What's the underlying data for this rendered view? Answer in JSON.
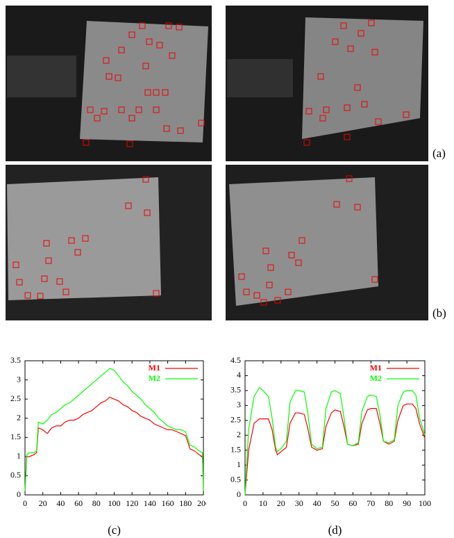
{
  "images": [
    {
      "label": "(a)"
    },
    {
      "label": "(b)"
    }
  ],
  "chart_data": [
    {
      "type": "line",
      "label": "(c)",
      "x": [
        0,
        2,
        5,
        10,
        13,
        15,
        20,
        25,
        30,
        35,
        40,
        45,
        50,
        55,
        60,
        65,
        70,
        75,
        80,
        85,
        90,
        95,
        100,
        105,
        110,
        115,
        120,
        125,
        130,
        135,
        140,
        145,
        150,
        155,
        160,
        165,
        170,
        175,
        180,
        185,
        190,
        195,
        199,
        200
      ],
      "series": [
        {
          "name": "M1",
          "color": "#ff0000",
          "values": [
            0.1,
            1.0,
            1.0,
            1.05,
            1.1,
            1.75,
            1.7,
            1.6,
            1.75,
            1.8,
            1.8,
            1.9,
            1.95,
            1.95,
            2.0,
            2.1,
            2.15,
            2.2,
            2.3,
            2.4,
            2.45,
            2.55,
            2.5,
            2.45,
            2.35,
            2.3,
            2.2,
            2.15,
            2.05,
            2.0,
            1.95,
            1.85,
            1.8,
            1.75,
            1.7,
            1.7,
            1.65,
            1.6,
            1.55,
            1.2,
            1.15,
            1.05,
            1.0,
            0.1
          ]
        },
        {
          "name": "M2",
          "color": "#00ff00",
          "values": [
            0.1,
            1.05,
            1.1,
            1.1,
            1.15,
            1.9,
            1.85,
            1.95,
            2.1,
            2.15,
            2.25,
            2.35,
            2.4,
            2.5,
            2.6,
            2.7,
            2.8,
            2.9,
            3.0,
            3.1,
            3.2,
            3.3,
            3.25,
            3.1,
            2.95,
            2.85,
            2.7,
            2.6,
            2.5,
            2.35,
            2.25,
            2.15,
            2.0,
            1.9,
            1.8,
            1.75,
            1.7,
            1.7,
            1.65,
            1.3,
            1.25,
            1.15,
            1.1,
            0.1
          ]
        }
      ],
      "xlim": [
        0,
        200
      ],
      "xticks": [
        0,
        20,
        40,
        60,
        80,
        100,
        120,
        140,
        160,
        180,
        200
      ],
      "ylim": [
        0,
        3.5
      ],
      "yticks": [
        0,
        0.5,
        1,
        1.5,
        2,
        2.5,
        3,
        3.5
      ],
      "legend": "upper right"
    },
    {
      "type": "line",
      "label": "(d)",
      "x": [
        0,
        2,
        5,
        8,
        10,
        13,
        15,
        17,
        18,
        20,
        23,
        25,
        28,
        30,
        33,
        35,
        37,
        40,
        43,
        45,
        48,
        50,
        53,
        55,
        57,
        60,
        63,
        65,
        68,
        70,
        73,
        75,
        77,
        80,
        83,
        85,
        88,
        90,
        93,
        95,
        97,
        100
      ],
      "series": [
        {
          "name": "M1",
          "color": "#ff0000",
          "values": [
            0,
            1.5,
            2.4,
            2.55,
            2.55,
            2.55,
            2.2,
            1.5,
            1.35,
            1.45,
            1.6,
            2.4,
            2.75,
            2.75,
            2.7,
            2.2,
            1.6,
            1.5,
            1.55,
            2.3,
            2.75,
            2.85,
            2.8,
            2.3,
            1.7,
            1.65,
            1.7,
            2.4,
            2.85,
            2.9,
            2.9,
            2.4,
            1.8,
            1.7,
            1.8,
            2.5,
            3.0,
            3.05,
            3.05,
            2.9,
            2.4,
            1.9
          ]
        },
        {
          "name": "M2",
          "color": "#00ff00",
          "values": [
            0,
            2.2,
            3.3,
            3.6,
            3.5,
            3.3,
            2.6,
            1.6,
            1.45,
            1.55,
            1.8,
            3.1,
            3.5,
            3.5,
            3.45,
            2.7,
            1.7,
            1.55,
            1.6,
            2.9,
            3.45,
            3.5,
            3.4,
            2.6,
            1.7,
            1.65,
            1.75,
            2.8,
            3.3,
            3.35,
            3.3,
            2.7,
            1.8,
            1.75,
            1.85,
            3.0,
            3.45,
            3.5,
            3.5,
            3.35,
            2.6,
            2.0
          ]
        }
      ],
      "xlim": [
        0,
        100
      ],
      "xticks": [
        0,
        10,
        20,
        30,
        40,
        50,
        60,
        70,
        80,
        90,
        100
      ],
      "ylim": [
        0,
        4.5
      ],
      "yticks": [
        0,
        0.5,
        1,
        1.5,
        2,
        2.5,
        3,
        3.5,
        4,
        4.5
      ],
      "legend": "upper right"
    }
  ]
}
